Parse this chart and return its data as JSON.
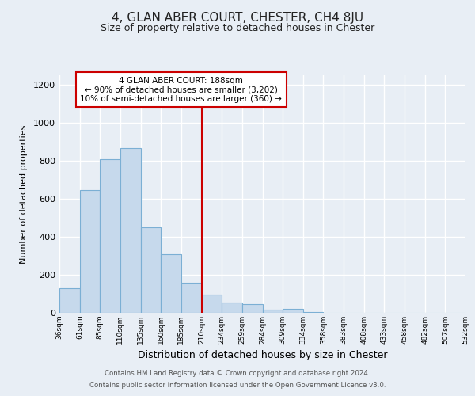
{
  "title": "4, GLAN ABER COURT, CHESTER, CH4 8JU",
  "subtitle": "Size of property relative to detached houses in Chester",
  "xlabel": "Distribution of detached houses by size in Chester",
  "ylabel": "Number of detached properties",
  "bin_labels": [
    "36sqm",
    "61sqm",
    "85sqm",
    "110sqm",
    "135sqm",
    "160sqm",
    "185sqm",
    "210sqm",
    "234sqm",
    "259sqm",
    "284sqm",
    "309sqm",
    "334sqm",
    "358sqm",
    "383sqm",
    "408sqm",
    "433sqm",
    "458sqm",
    "482sqm",
    "507sqm",
    "532sqm"
  ],
  "bar_values": [
    130,
    645,
    810,
    865,
    450,
    310,
    160,
    95,
    55,
    45,
    15,
    20,
    5,
    0,
    0,
    0,
    0,
    0,
    0,
    0
  ],
  "bar_color": "#c6d9ec",
  "bar_edge_color": "#7bafd4",
  "vline_x_index": 6,
  "vline_color": "#cc0000",
  "ylim": [
    0,
    1250
  ],
  "yticks": [
    0,
    200,
    400,
    600,
    800,
    1000,
    1200
  ],
  "annotation_title": "4 GLAN ABER COURT: 188sqm",
  "annotation_line1": "← 90% of detached houses are smaller (3,202)",
  "annotation_line2": "10% of semi-detached houses are larger (360) →",
  "annotation_box_color": "#ffffff",
  "annotation_box_edge": "#cc0000",
  "footer1": "Contains HM Land Registry data © Crown copyright and database right 2024.",
  "footer2": "Contains public sector information licensed under the Open Government Licence v3.0.",
  "background_color": "#e8eef5",
  "grid_color": "#ffffff"
}
